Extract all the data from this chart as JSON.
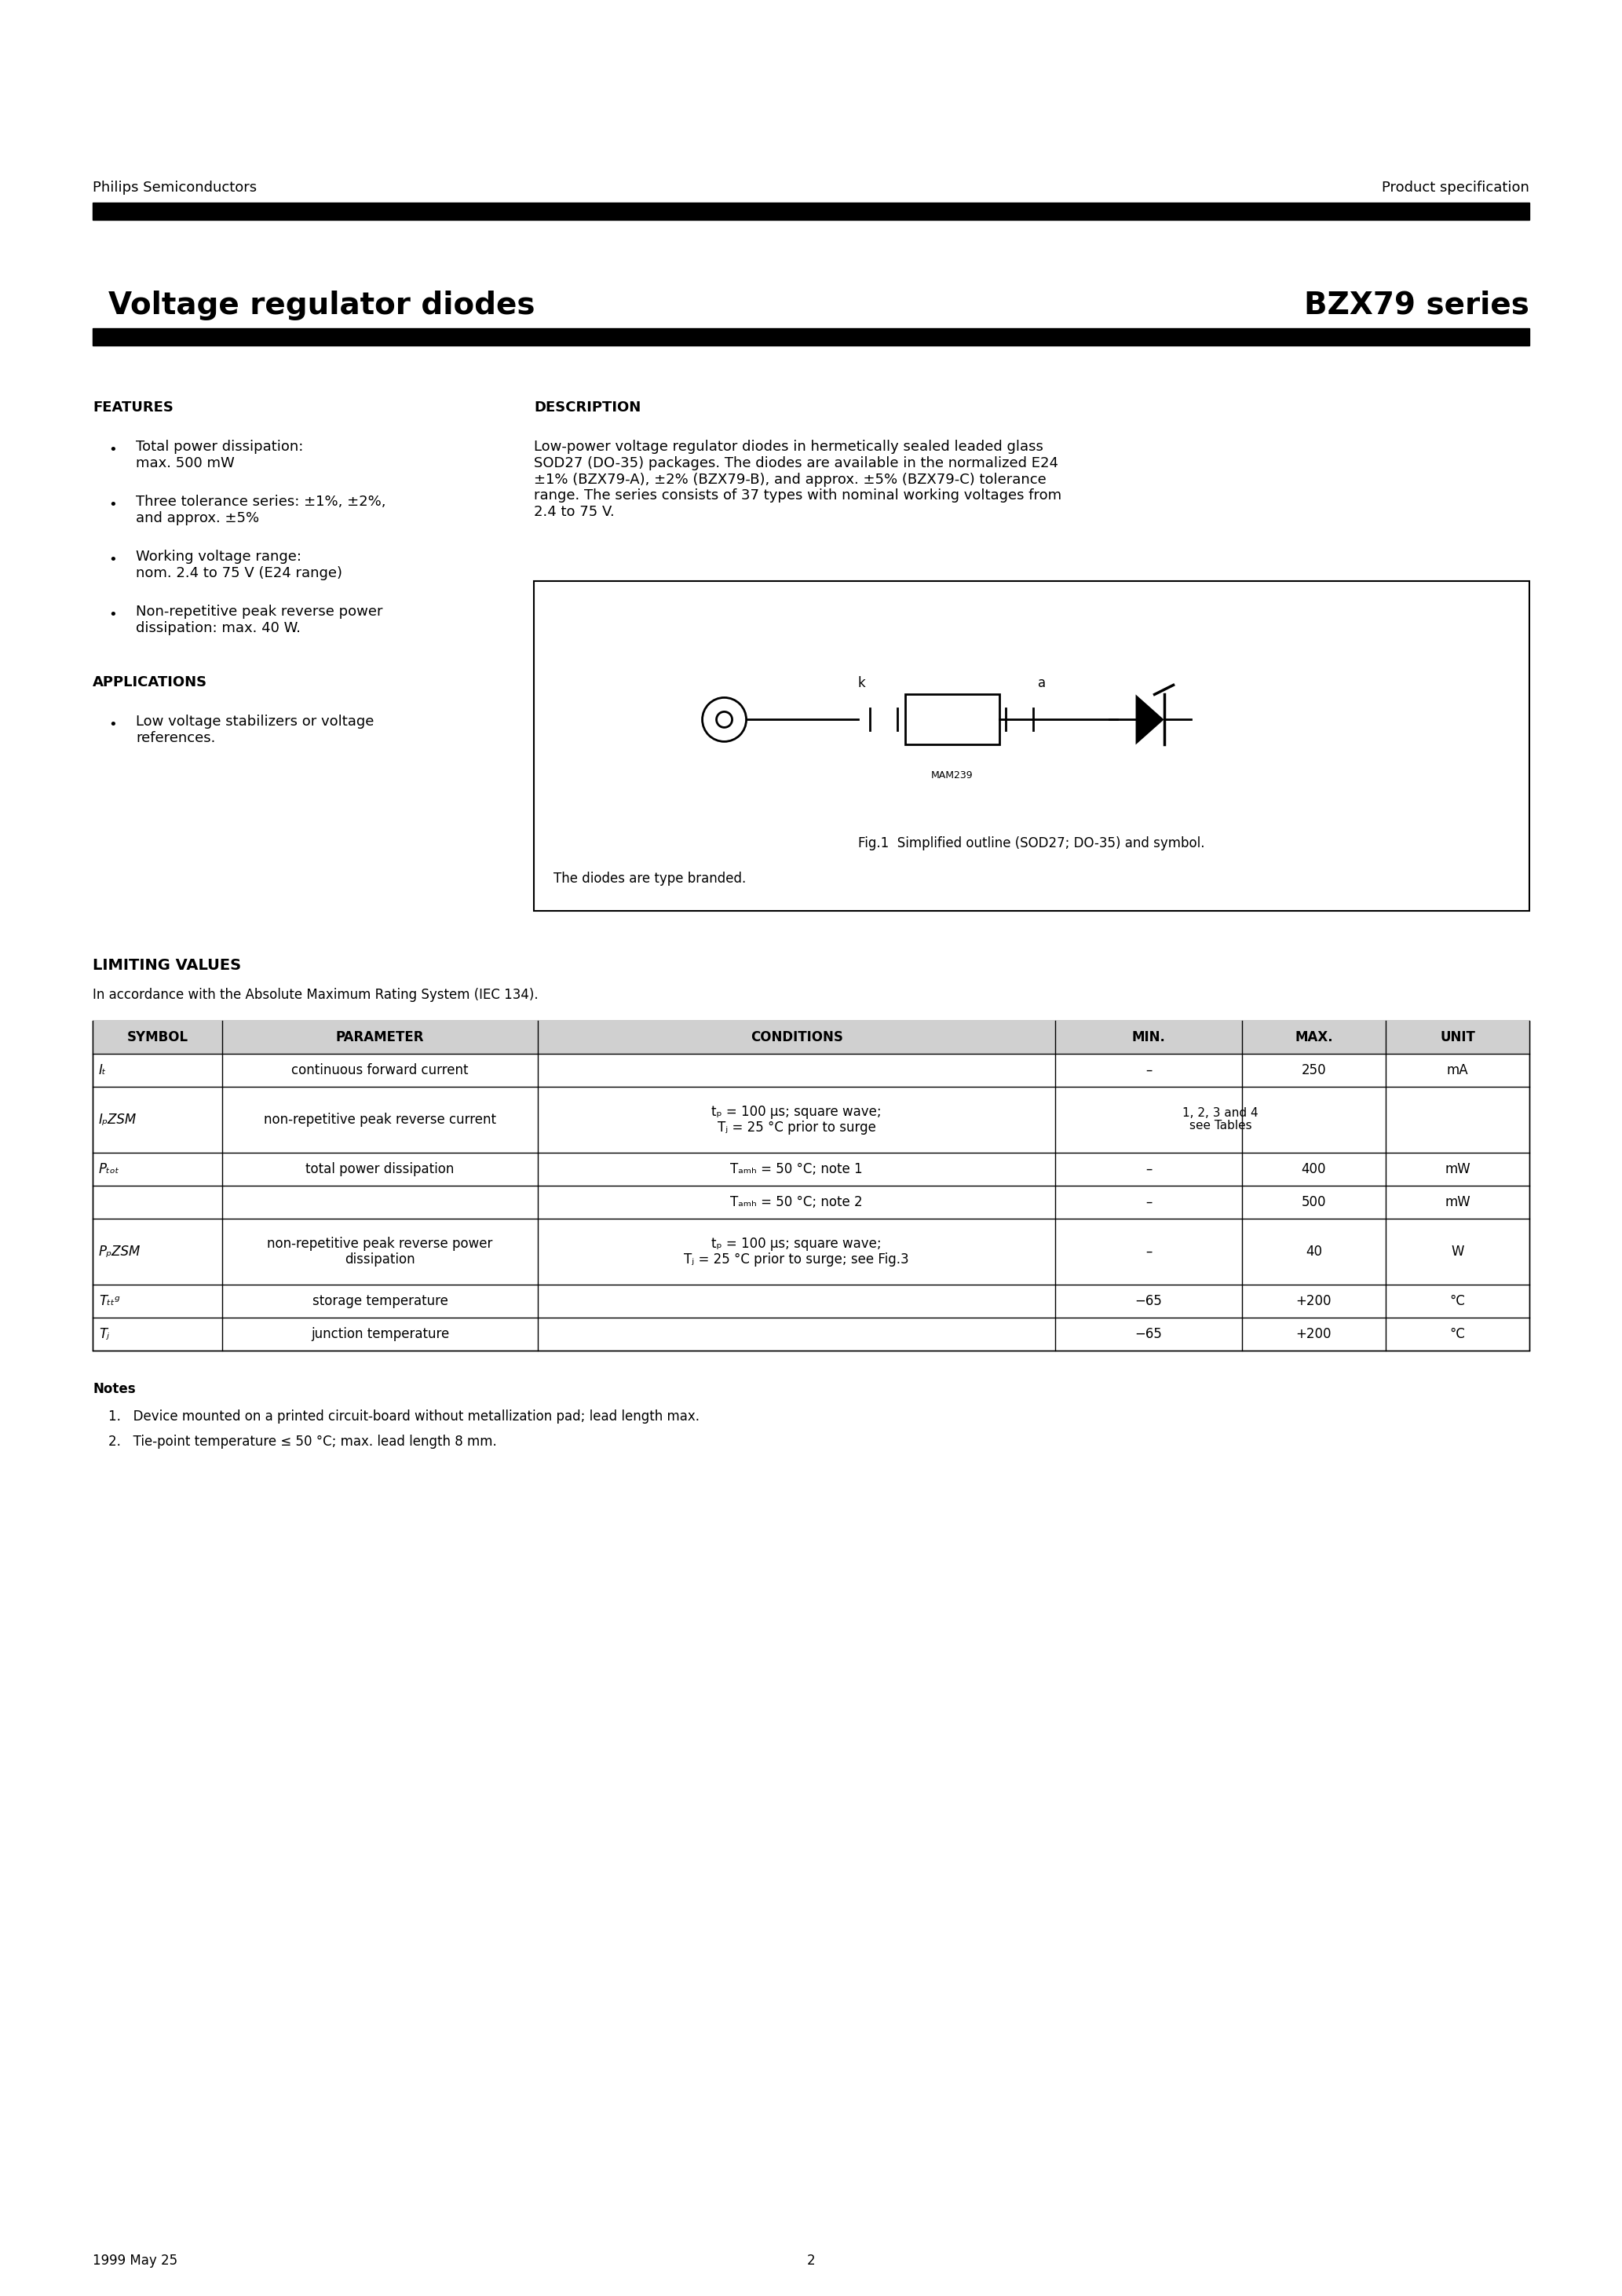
{
  "page_title_left": "Voltage regulator diodes",
  "page_title_right": "BZX79 series",
  "header_left": "Philips Semiconductors",
  "header_right": "Product specification",
  "footer_left": "1999 May 25",
  "footer_center": "2",
  "features_title": "FEATURES",
  "features_bullets": [
    "Total power dissipation:\nmax. 500 mW",
    "Three tolerance series: ±1%, ±2%,\nand approx. ±5%",
    "Working voltage range:\nnom. 2.4 to 75 V (E24 range)",
    "Non-repetitive peak reverse power\ndissipation: max. 40 W."
  ],
  "applications_title": "APPLICATIONS",
  "applications_bullets": [
    "Low voltage stabilizers or voltage\nreferences."
  ],
  "description_title": "DESCRIPTION",
  "description_text": "Low-power voltage regulator diodes in hermetically sealed leaded glass\nSOD27 (DO-35) packages. The diodes are available in the normalized E24\n±1% (BZX79-A), ±2% (BZX79-B), and approx. ±5% (BZX79-C) tolerance\nrange. The series consists of 37 types with nominal working voltages from\n2.4 to 75 V.",
  "fig_caption1": "The diodes are type branded.",
  "fig_caption2": "Fig.1  Simplified outline (SOD27; DO-35) and symbol.",
  "limiting_title": "LIMITING VALUES",
  "limiting_subtitle": "In accordance with the Absolute Maximum Rating System (IEC 134).",
  "table_headers": [
    "SYMBOL",
    "PARAMETER",
    "CONDITIONS",
    "MIN.",
    "MAX.",
    "UNIT"
  ],
  "table_rows": [
    [
      "Iₜ",
      "continuous forward current",
      "",
      "–",
      "250",
      "mA"
    ],
    [
      "IₚZSM",
      "non-repetitive peak reverse current",
      "tₚ = 100 µs; square wave;\nTⱼ = 25 °C prior to surge",
      "see Tables\n1, 2, 3 and 4",
      "",
      ""
    ],
    [
      "Pₜₒₜ",
      "total power dissipation",
      "Tₐₘₕ = 50 °C; note 1",
      "–",
      "400",
      "mW"
    ],
    [
      "",
      "",
      "Tₐₘₕ = 50 °C; note 2",
      "–",
      "500",
      "mW"
    ],
    [
      "PₚZSM",
      "non-repetitive peak reverse power\ndissipation",
      "tₚ = 100 µs; square wave;\nTⱼ = 25 °C prior to surge; see Fig.3",
      "–",
      "40",
      "W"
    ],
    [
      "Tₜₜᵍ",
      "storage temperature",
      "",
      "−65",
      "+200",
      "°C"
    ],
    [
      "Tⱼ",
      "junction temperature",
      "",
      "−65",
      "+200",
      "°C"
    ]
  ],
  "notes_title": "Notes",
  "notes": [
    "1.   Device mounted on a printed circuit-board without metallization pad; lead length max.",
    "2.   Tie-point temperature ≤ 50 °C; max. lead length 8 mm."
  ],
  "background_color": "#ffffff",
  "text_color": "#000000",
  "header_bar_color": "#000000"
}
